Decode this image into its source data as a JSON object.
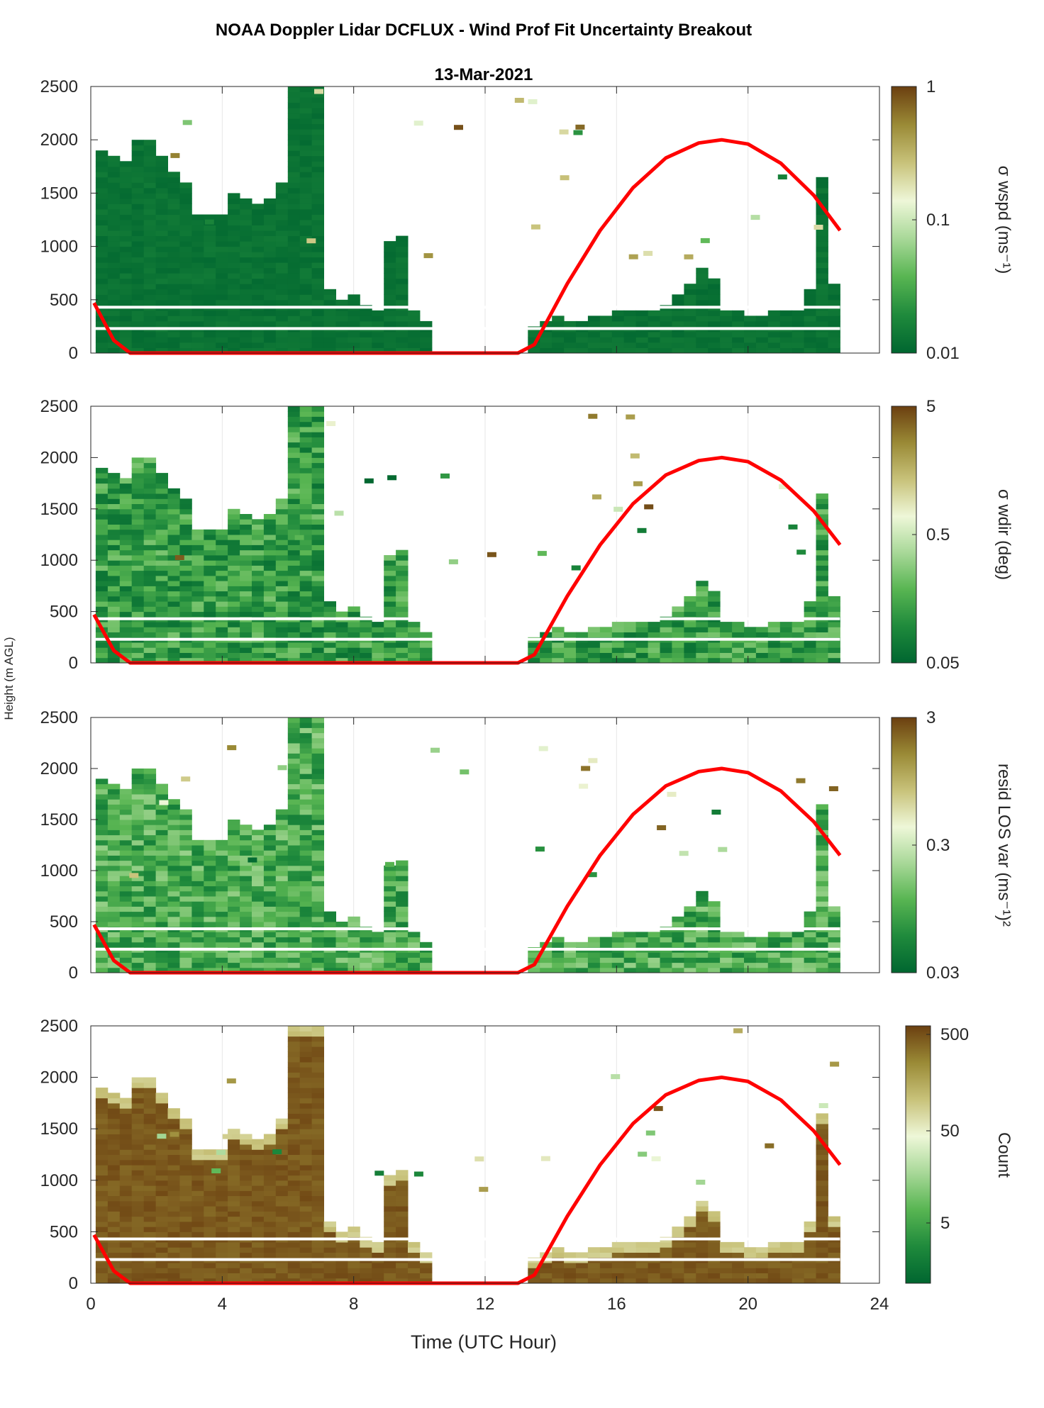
{
  "figure": {
    "title": "NOAA Doppler Lidar DCFLUX - Wind Prof Fit Uncertainty Breakout",
    "subtitle": "13-Mar-2021",
    "ylabel": "Height (m AGL)",
    "xlabel": "Time (UTC Hour)"
  },
  "colors": {
    "sun_curve": "#ff0000",
    "cmap": [
      "#006630",
      "#1f8a3c",
      "#58b552",
      "#a8d898",
      "#eef7d8",
      "#c8c27a",
      "#9a8a36",
      "#6b3f10"
    ]
  },
  "chart_data": [
    {
      "type": "heatmap",
      "name": "sigma_wspd",
      "colorbar_label": "σ wspd (ms⁻¹)",
      "cbar_ticks": [
        "1",
        "0.1",
        "0.01"
      ],
      "xlim": [
        0,
        24
      ],
      "ylim": [
        0,
        2500
      ],
      "xticks": [
        0,
        4,
        8,
        12,
        16,
        20,
        24
      ],
      "yticks": [
        0,
        500,
        1000,
        1500,
        2000,
        2500
      ],
      "top": [
        1900,
        1850,
        1800,
        2000,
        2000,
        1850,
        1700,
        1600,
        1300,
        1300,
        1300,
        1500,
        1450,
        1400,
        1450,
        1600,
        2500,
        2500,
        2500,
        600,
        500,
        550,
        450,
        400,
        1050,
        1100,
        400,
        300,
        0,
        0,
        0,
        0,
        0,
        0,
        0,
        0,
        250,
        300,
        350,
        300,
        300,
        350,
        350,
        400,
        400,
        400,
        400,
        450,
        550,
        650,
        800,
        700,
        400,
        400,
        350,
        350,
        400,
        400,
        400,
        600,
        1650,
        650
      ],
      "level": 0.05,
      "sun_elev_profile": true
    },
    {
      "type": "heatmap",
      "name": "sigma_wdir",
      "colorbar_label": "σ wdir (deg)",
      "cbar_ticks": [
        "5",
        "0.5",
        "0.05"
      ],
      "xlim": [
        0,
        24
      ],
      "ylim": [
        0,
        2500
      ],
      "xticks": [
        0,
        4,
        8,
        12,
        16,
        20,
        24
      ],
      "yticks": [
        0,
        500,
        1000,
        1500,
        2000,
        2500
      ],
      "level": 0.2
    },
    {
      "type": "heatmap",
      "name": "resid_los_var",
      "colorbar_label": "resid LOS var (ms⁻¹)²",
      "cbar_ticks": [
        "3",
        "0.3",
        "0.03"
      ],
      "xlim": [
        0,
        24
      ],
      "ylim": [
        0,
        2500
      ],
      "xticks": [
        0,
        4,
        8,
        12,
        16,
        20,
        24
      ],
      "yticks": [
        0,
        500,
        1000,
        1500,
        2000,
        2500
      ],
      "level": 0.25
    },
    {
      "type": "heatmap",
      "name": "count",
      "colorbar_label": "Count",
      "cbar_ticks": [
        "500",
        "50",
        "5"
      ],
      "xlim": [
        0,
        24
      ],
      "ylim": [
        0,
        2500
      ],
      "xticks": [
        0,
        4,
        8,
        12,
        16,
        20,
        24
      ],
      "yticks": [
        0,
        500,
        1000,
        1500,
        2000,
        2500
      ],
      "level": 0.95
    }
  ],
  "sun_curve": {
    "x": [
      0.1,
      0.7,
      1.2,
      13.0,
      13.5,
      14.5,
      15.5,
      16.5,
      17.5,
      18.5,
      19.2,
      20.0,
      21.0,
      22.0,
      22.8
    ],
    "y": [
      470,
      120,
      0,
      0,
      80,
      650,
      1150,
      1550,
      1830,
      1970,
      2000,
      1960,
      1780,
      1480,
      1150
    ]
  }
}
